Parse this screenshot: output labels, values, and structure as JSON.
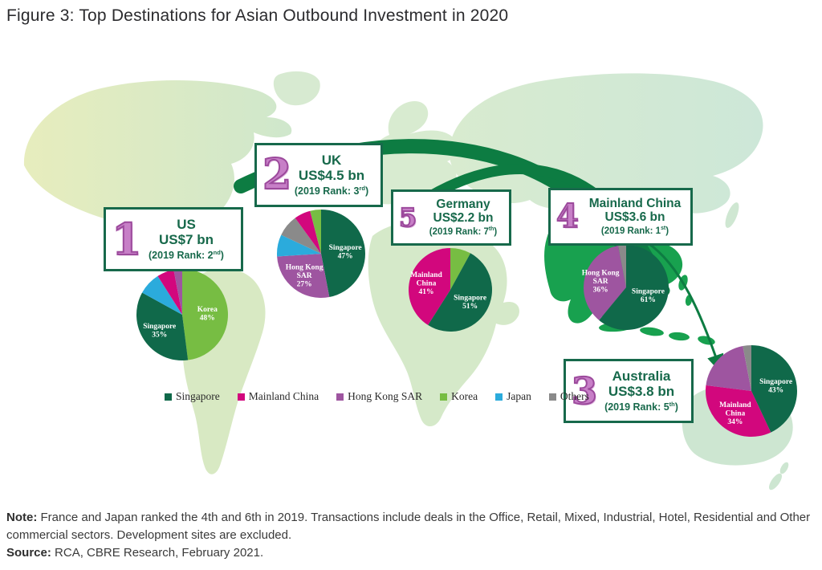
{
  "title": "Figure 3: Top Destinations for Asian Outbound Investment in 2020",
  "legend": {
    "items": [
      {
        "label": "Singapore",
        "color": "#10694a"
      },
      {
        "label": "Mainland China",
        "color": "#d2077d"
      },
      {
        "label": "Hong Kong SAR",
        "color": "#9e55a0"
      },
      {
        "label": "Korea",
        "color": "#77bd43"
      },
      {
        "label": "Japan",
        "color": "#2babdc"
      },
      {
        "label": "Others",
        "color": "#8a8a8a"
      }
    ]
  },
  "destinations": [
    {
      "rank": "1",
      "country": "US",
      "amount": "US$7 bn",
      "rank_prefix": "(2019 Rank: 2",
      "rank_sup": "nd",
      "rank_suffix": ")"
    },
    {
      "rank": "2",
      "country": "UK",
      "amount": "US$4.5 bn",
      "rank_prefix": "(2019 Rank: 3",
      "rank_sup": "rd",
      "rank_suffix": ")"
    },
    {
      "rank": "3",
      "country": "Australia",
      "amount": "US$3.8 bn",
      "rank_prefix": "(2019 Rank: 5",
      "rank_sup": "th",
      "rank_suffix": ")"
    },
    {
      "rank": "4",
      "country": "Mainland China",
      "amount": "US$3.6 bn",
      "rank_prefix": "(2019 Rank: 1",
      "rank_sup": "st",
      "rank_suffix": ")"
    },
    {
      "rank": "5",
      "country": "Germany",
      "amount": "US$2.2 bn",
      "rank_prefix": "(2019 Rank: 7",
      "rank_sup": "th",
      "rank_suffix": ")"
    }
  ],
  "chart_data": [
    {
      "type": "pie",
      "id": "us",
      "title": "US — US$7 bn, destination share of Asian outbound investment 2020",
      "labels": [
        "Korea",
        "Singapore",
        "Japan",
        "Mainland China",
        "Hong Kong SAR"
      ],
      "values": [
        48,
        35,
        8,
        6,
        3
      ],
      "slice_labels": [
        [
          "Korea",
          "48%"
        ],
        [
          "Singapore",
          "35%"
        ],
        null,
        null,
        null
      ]
    },
    {
      "type": "pie",
      "id": "uk",
      "title": "UK — US$4.5 bn, destination share of Asian outbound investment 2020",
      "labels": [
        "Singapore",
        "Hong Kong SAR",
        "Japan",
        "Others",
        "Mainland China",
        "Korea"
      ],
      "values": [
        47,
        27,
        8,
        8,
        6,
        4
      ],
      "slice_labels": [
        [
          "Singapore",
          "47%"
        ],
        [
          "Hong Kong",
          "SAR",
          "27%"
        ],
        null,
        null,
        null,
        null
      ]
    },
    {
      "type": "pie",
      "id": "germany",
      "title": "Germany — US$2.2 bn, destination share of Asian outbound investment 2020",
      "labels": [
        "Korea",
        "Singapore",
        "Mainland China"
      ],
      "values": [
        8,
        51,
        41
      ],
      "slice_labels": [
        null,
        [
          "Singapore",
          "51%"
        ],
        [
          "Mainland",
          "China",
          "41%"
        ]
      ]
    },
    {
      "type": "pie",
      "id": "mainland_china",
      "title": "Mainland China — US$3.6 bn, destination share of Asian outbound investment 2020",
      "labels": [
        "Singapore",
        "Hong Kong SAR",
        "Others"
      ],
      "values": [
        61,
        36,
        3
      ],
      "slice_labels": [
        [
          "Singapore",
          "61%"
        ],
        [
          "Hong Kong",
          "SAR",
          "36%"
        ],
        null
      ]
    },
    {
      "type": "pie",
      "id": "australia",
      "title": "Australia — US$3.8 bn, destination share of Asian outbound investment 2020",
      "labels": [
        "Singapore",
        "Mainland China",
        "Hong Kong SAR",
        "Others"
      ],
      "values": [
        43,
        34,
        20,
        3
      ],
      "slice_labels": [
        [
          "Singapore",
          "43%"
        ],
        [
          "Mainland",
          "China",
          "34%"
        ],
        null,
        null
      ]
    }
  ],
  "colors": {
    "series": {
      "Singapore": "#10694a",
      "Mainland China": "#d2077d",
      "Hong Kong SAR": "#9e55a0",
      "Korea": "#77bd43",
      "Japan": "#2babdc",
      "Others": "#8a8a8a"
    },
    "box_border": "#17694b",
    "box_text": "#17694b",
    "rank_numeral": "#9c4a9c",
    "flow_arrow": "#0d7c42",
    "asia_highlight": "#18a14f"
  },
  "note_label": "Note:",
  "note_text": "France and Japan ranked the 4th and 6th in 2019. Transactions include deals in the Office, Retail, Mixed, Industrial, Hotel, Residential and Other commercial sectors. Development sites are excluded.",
  "source_label": "Source:",
  "source_text": "RCA, CBRE Research, February 2021."
}
